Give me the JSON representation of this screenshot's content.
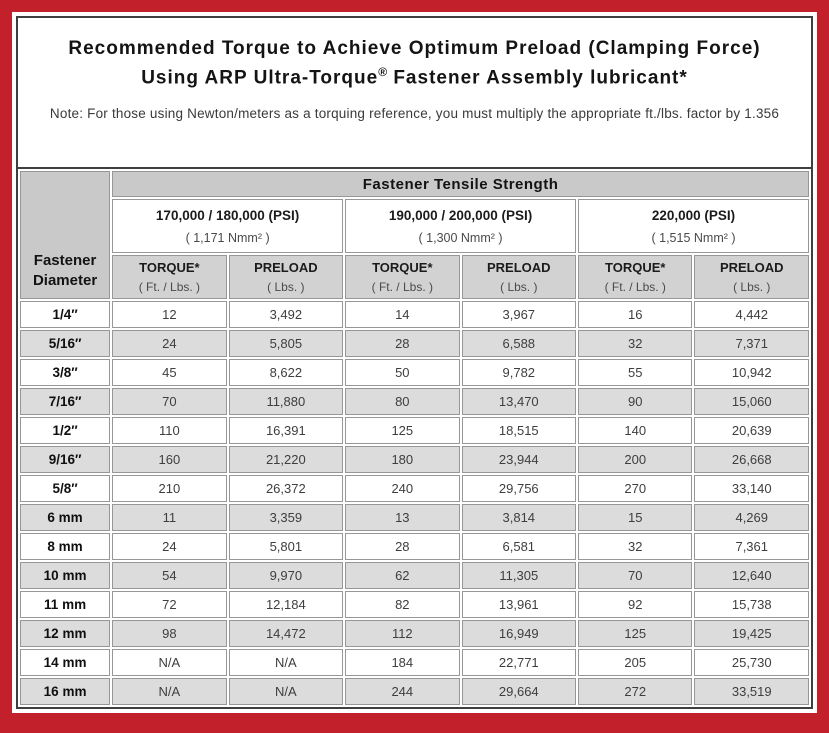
{
  "page": {
    "title_line1": "Recommended Torque to Achieve Optimum Preload (Clamping Force)",
    "title_line2_pre": "Using ARP Ultra-Torque",
    "title_registered_mark": "®",
    "title_line2_post": " Fastener Assembly lubricant*",
    "note": "Note: For those using Newton/meters as a torquing reference, you must multiply the appropriate ft./lbs. factor by 1.356"
  },
  "colors": {
    "border_red": "#c2212b",
    "frame_line": "#3f3f3f",
    "header_gray": "#c9c9c9",
    "subheader_gray": "#d2d2d2",
    "stripe_gray": "#dcdcdc"
  },
  "table": {
    "corner_header_line1": "Fastener",
    "corner_header_line2": "Diameter",
    "tensile_header": "Fastener Tensile Strength",
    "groups": [
      {
        "psi": "170,000 / 180,000 (PSI)",
        "nmm": "( 1,171 Nmm² )"
      },
      {
        "psi": "190,000 / 200,000 (PSI)",
        "nmm": "( 1,300 Nmm² )"
      },
      {
        "psi": "220,000 (PSI)",
        "nmm": "( 1,515 Nmm² )"
      }
    ],
    "subheaders": {
      "torque_label": "TORQUE*",
      "torque_unit": "( Ft. / Lbs. )",
      "preload_label": "PRELOAD",
      "preload_unit": "( Lbs. )"
    },
    "rows": [
      {
        "diameter": "1/4″",
        "values": [
          "12",
          "3,492",
          "14",
          "3,967",
          "16",
          "4,442"
        ]
      },
      {
        "diameter": "5/16″",
        "values": [
          "24",
          "5,805",
          "28",
          "6,588",
          "32",
          "7,371"
        ]
      },
      {
        "diameter": "3/8″",
        "values": [
          "45",
          "8,622",
          "50",
          "9,782",
          "55",
          "10,942"
        ]
      },
      {
        "diameter": "7/16″",
        "values": [
          "70",
          "11,880",
          "80",
          "13,470",
          "90",
          "15,060"
        ]
      },
      {
        "diameter": "1/2″",
        "values": [
          "110",
          "16,391",
          "125",
          "18,515",
          "140",
          "20,639"
        ]
      },
      {
        "diameter": "9/16″",
        "values": [
          "160",
          "21,220",
          "180",
          "23,944",
          "200",
          "26,668"
        ]
      },
      {
        "diameter": "5/8″",
        "values": [
          "210",
          "26,372",
          "240",
          "29,756",
          "270",
          "33,140"
        ]
      },
      {
        "diameter": "6 mm",
        "values": [
          "11",
          "3,359",
          "13",
          "3,814",
          "15",
          "4,269"
        ]
      },
      {
        "diameter": "8 mm",
        "values": [
          "24",
          "5,801",
          "28",
          "6,581",
          "32",
          "7,361"
        ]
      },
      {
        "diameter": "10 mm",
        "values": [
          "54",
          "9,970",
          "62",
          "11,305",
          "70",
          "12,640"
        ]
      },
      {
        "diameter": "11 mm",
        "values": [
          "72",
          "12,184",
          "82",
          "13,961",
          "92",
          "15,738"
        ]
      },
      {
        "diameter": "12 mm",
        "values": [
          "98",
          "14,472",
          "112",
          "16,949",
          "125",
          "19,425"
        ]
      },
      {
        "diameter": "14 mm",
        "values": [
          "N/A",
          "N/A",
          "184",
          "22,771",
          "205",
          "25,730"
        ]
      },
      {
        "diameter": "16 mm",
        "values": [
          "N/A",
          "N/A",
          "244",
          "29,664",
          "272",
          "33,519"
        ]
      }
    ]
  }
}
